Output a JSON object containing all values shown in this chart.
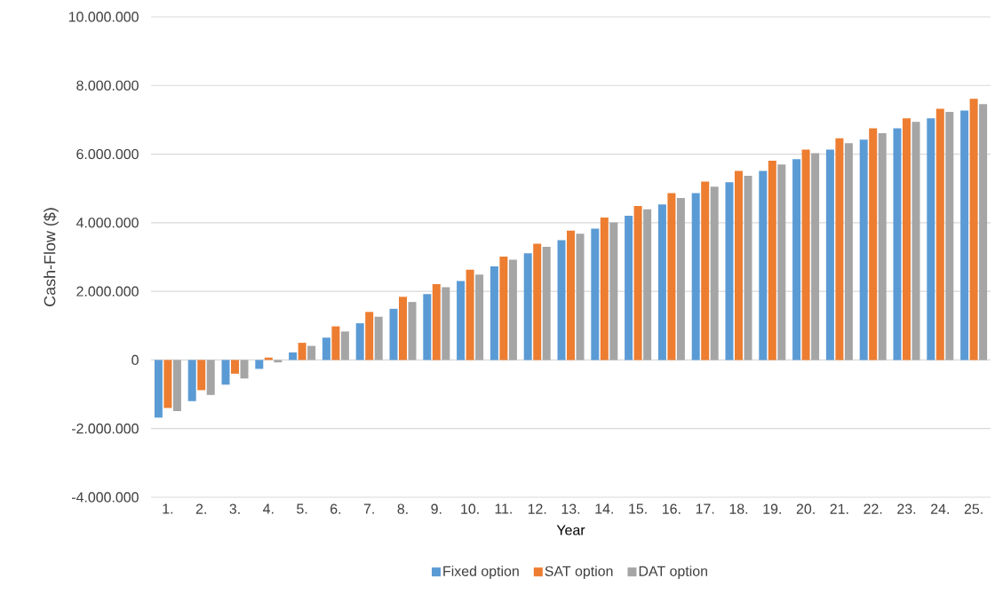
{
  "chart_data": {
    "type": "bar",
    "xlabel": "Year",
    "ylabel": "Cash-Flow ($)",
    "categories": [
      "1.",
      "2.",
      "3.",
      "4.",
      "5.",
      "6.",
      "7.",
      "8.",
      "9.",
      "10.",
      "11.",
      "12.",
      "13.",
      "14.",
      "15.",
      "16.",
      "17.",
      "18.",
      "19.",
      "20.",
      "21.",
      "22.",
      "23.",
      "24.",
      "25."
    ],
    "series": [
      {
        "name": "Fixed option",
        "color": "#5b9bd5",
        "values": [
          -1680000,
          -1200000,
          -720000,
          -260000,
          220000,
          650000,
          1070000,
          1490000,
          1920000,
          2300000,
          2730000,
          3110000,
          3490000,
          3830000,
          4200000,
          4530000,
          4860000,
          5180000,
          5510000,
          5850000,
          6130000,
          6420000,
          6750000,
          7040000,
          7270000
        ]
      },
      {
        "name": "SAT option",
        "color": "#ed7d31",
        "values": [
          -1400000,
          -880000,
          -400000,
          70000,
          500000,
          980000,
          1400000,
          1840000,
          2210000,
          2630000,
          3010000,
          3390000,
          3770000,
          4150000,
          4490000,
          4860000,
          5200000,
          5510000,
          5810000,
          6130000,
          6460000,
          6750000,
          7040000,
          7320000,
          7610000
        ]
      },
      {
        "name": "DAT option",
        "color": "#a5a5a5",
        "values": [
          -1490000,
          -1020000,
          -540000,
          -70000,
          410000,
          830000,
          1260000,
          1690000,
          2120000,
          2490000,
          2920000,
          3300000,
          3680000,
          4010000,
          4390000,
          4720000,
          5050000,
          5370000,
          5700000,
          6030000,
          6320000,
          6610000,
          6940000,
          7230000,
          7460000
        ]
      }
    ],
    "ylim": [
      -4000000,
      10000000
    ],
    "yticks": [
      {
        "value": -4000000,
        "label": "-4.000.000"
      },
      {
        "value": -2000000,
        "label": "-2.000.000"
      },
      0,
      {
        "value": 2000000,
        "label": "2.000.000"
      },
      {
        "value": 4000000,
        "label": "4.000.000"
      },
      {
        "value": 6000000,
        "label": "6.000.000"
      },
      {
        "value": 8000000,
        "label": "8.000.000"
      },
      {
        "value": 10000000,
        "label": "10.000.000"
      }
    ],
    "grid": "y",
    "legend": "bottom"
  }
}
